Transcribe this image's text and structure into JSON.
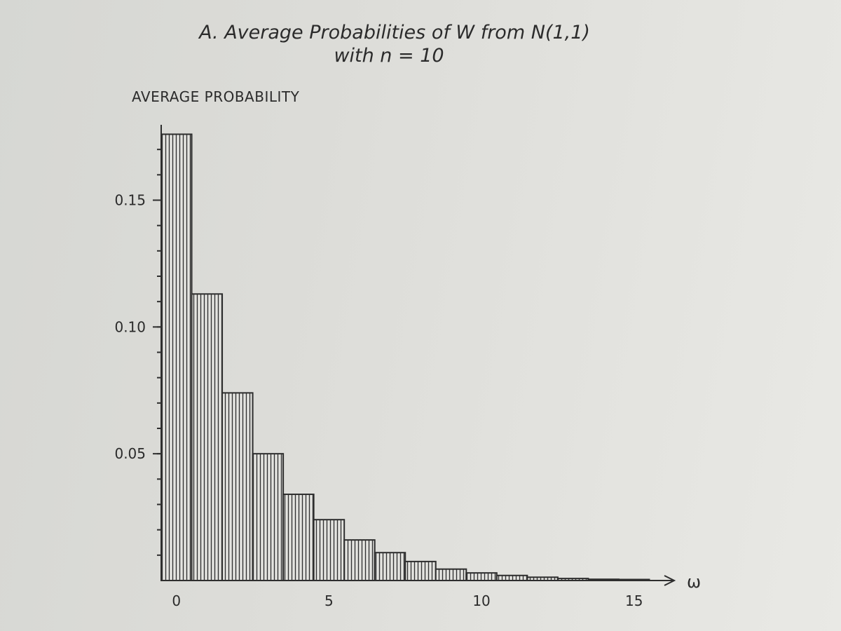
{
  "chart_data": {
    "type": "bar",
    "title": "A. Average Probabilities of W from N(1,1)",
    "subtitle": "with n = 10",
    "ylabel": "AVERAGE PROBABILITY",
    "xlabel": "ω",
    "categories": [
      0,
      1,
      2,
      3,
      4,
      5,
      6,
      7,
      8,
      9,
      10,
      11,
      12,
      13,
      14,
      15
    ],
    "values": [
      0.176,
      0.113,
      0.074,
      0.05,
      0.034,
      0.024,
      0.016,
      0.011,
      0.0075,
      0.0045,
      0.003,
      0.002,
      0.0013,
      0.0008,
      0.0005,
      0.0003
    ],
    "ylim": [
      0,
      0.18
    ],
    "xlim": [
      -0.5,
      16.5
    ],
    "x_ticks": [
      {
        "value": 0,
        "label": "0"
      },
      {
        "value": 5,
        "label": "5"
      },
      {
        "value": 10,
        "label": "10"
      },
      {
        "value": 15,
        "label": "15"
      }
    ],
    "y_ticks": [
      {
        "value": 0.05,
        "label": "0.05"
      },
      {
        "value": 0.1,
        "label": "0.10"
      },
      {
        "value": 0.15,
        "label": "0.15"
      }
    ],
    "grid": false,
    "legend": "none",
    "colors": {
      "ink": "#2e2e2e",
      "paper": "#dcdcd8"
    }
  }
}
